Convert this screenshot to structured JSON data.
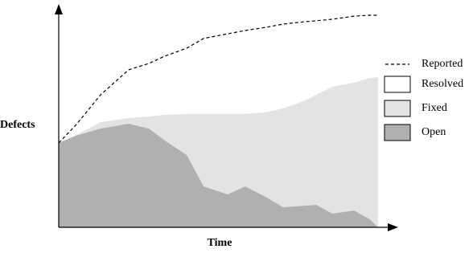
{
  "chart_data": {
    "type": "area",
    "x_label": "Time",
    "y_label": "Defects",
    "xlim": [
      0,
      100
    ],
    "ylim": [
      0,
      100
    ],
    "x": [
      0,
      5.2,
      12.4,
      20.7,
      26.7,
      31.4,
      37.9,
      42.9,
      50,
      55.2,
      61.2,
      66.4,
      73.1,
      76.2,
      81,
      87.4,
      92.1,
      94.5
    ],
    "series": [
      {
        "name": "Reported",
        "type": "line",
        "dashed": true,
        "color": "#000000",
        "values": [
          38.2,
          46.5,
          60,
          71.3,
          74.2,
          77.5,
          81.1,
          85.5,
          87.6,
          89.1,
          90.5,
          92,
          93.1,
          93.5,
          94.2,
          95.6,
          96,
          96
        ]
      },
      {
        "name": "Resolved",
        "type": "area",
        "color": "#ffffff",
        "values": [
          0,
          4.7,
          12.4,
          21.8,
          24,
          26.6,
          29.8,
          34.2,
          36.3,
          37.8,
          38.5,
          38.2,
          35.6,
          33.5,
          30.6,
          30.1,
          28.4,
          28
        ]
      },
      {
        "name": "Fixed",
        "type": "area",
        "color": "#e3e3e3",
        "values": [
          0,
          0.3,
          2.9,
          2.6,
          5.5,
          11.6,
          18.6,
          32.8,
          36.4,
          32.8,
          38.2,
          44.7,
          47.7,
          49.8,
          57.4,
          57.9,
          64,
          68
        ]
      },
      {
        "name": "Open",
        "type": "area",
        "color": "#b0b0b0",
        "values": [
          38.2,
          41.5,
          44.7,
          46.9,
          44.7,
          39.3,
          32.7,
          18.5,
          14.9,
          18.5,
          13.8,
          9.1,
          9.8,
          10.2,
          6.2,
          7.6,
          3.6,
          0
        ]
      }
    ]
  }
}
